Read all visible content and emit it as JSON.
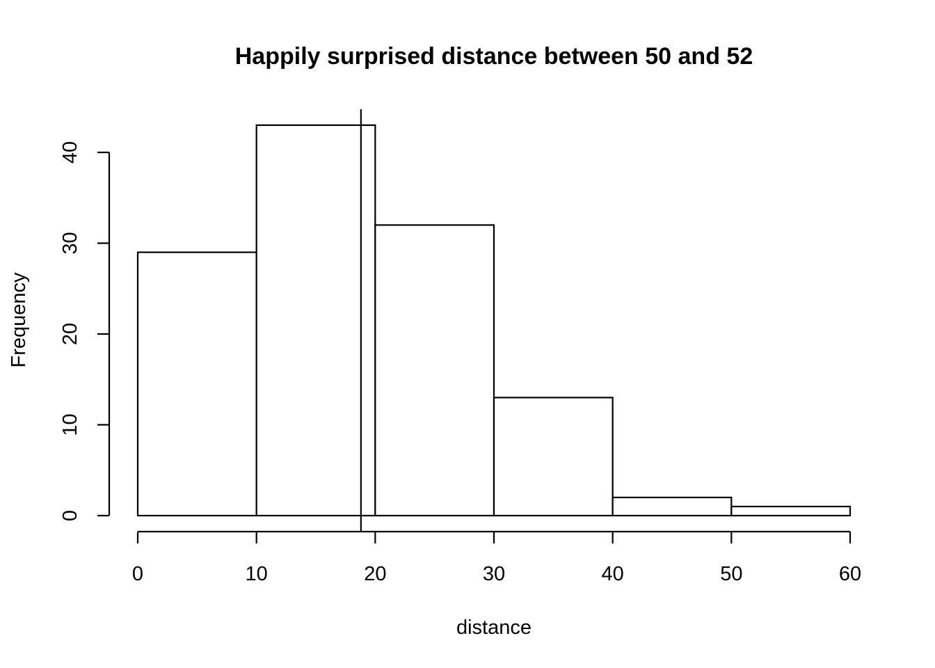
{
  "chart_data": {
    "type": "bar",
    "title": "Happily surprised distance between 50 and 52",
    "xlabel": "distance",
    "ylabel": "Frequency",
    "bins": [
      {
        "from": 0,
        "to": 10,
        "count": 29
      },
      {
        "from": 10,
        "to": 20,
        "count": 43
      },
      {
        "from": 20,
        "to": 30,
        "count": 32
      },
      {
        "from": 30,
        "to": 40,
        "count": 13
      },
      {
        "from": 40,
        "to": 50,
        "count": 2
      },
      {
        "from": 50,
        "to": 60,
        "count": 1
      }
    ],
    "xlim": [
      0,
      60
    ],
    "ylim": [
      0,
      45
    ],
    "x_ticks": [
      0,
      10,
      20,
      30,
      40,
      50,
      60
    ],
    "y_ticks": [
      0,
      10,
      20,
      30,
      40
    ],
    "reference_line_x": 18.8,
    "grid": false,
    "legend": "none"
  }
}
